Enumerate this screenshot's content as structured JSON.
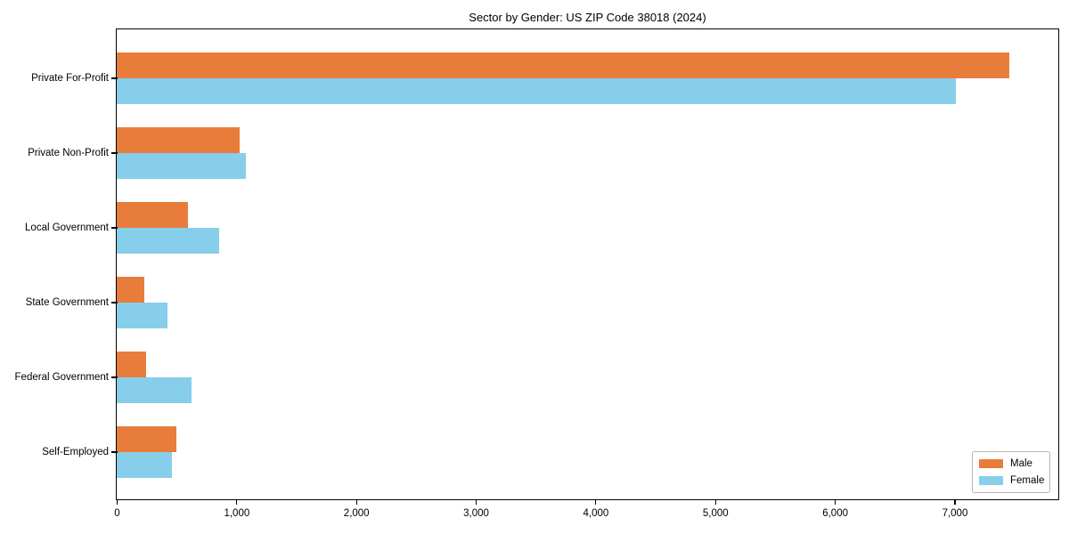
{
  "chart_data": {
    "type": "bar",
    "orientation": "horizontal",
    "title": "Sector by Gender: US ZIP Code 38018 (2024)",
    "categories": [
      "Private For-Profit",
      "Private Non-Profit",
      "Local Government",
      "State Government",
      "Federal Government",
      "Self-Employed"
    ],
    "series": [
      {
        "name": "Male",
        "color": "#e87d3b",
        "values": [
          7460,
          1025,
          595,
          230,
          245,
          500
        ]
      },
      {
        "name": "Female",
        "color": "#87ceeb",
        "values": [
          7010,
          1080,
          855,
          425,
          625,
          460
        ]
      }
    ],
    "xlabel": "",
    "ylabel": "",
    "xlim": [
      0,
      7860
    ],
    "xticks": [
      0,
      1000,
      2000,
      3000,
      4000,
      5000,
      6000,
      7000
    ],
    "xtick_labels": [
      "0",
      "1,000",
      "2,000",
      "3,000",
      "4,000",
      "5,000",
      "6,000",
      "7,000"
    ],
    "legend": {
      "position": "lower right",
      "entries": [
        "Male",
        "Female"
      ]
    },
    "grid": false,
    "plot_background": "#ffffff",
    "spine_color": "#000000"
  }
}
